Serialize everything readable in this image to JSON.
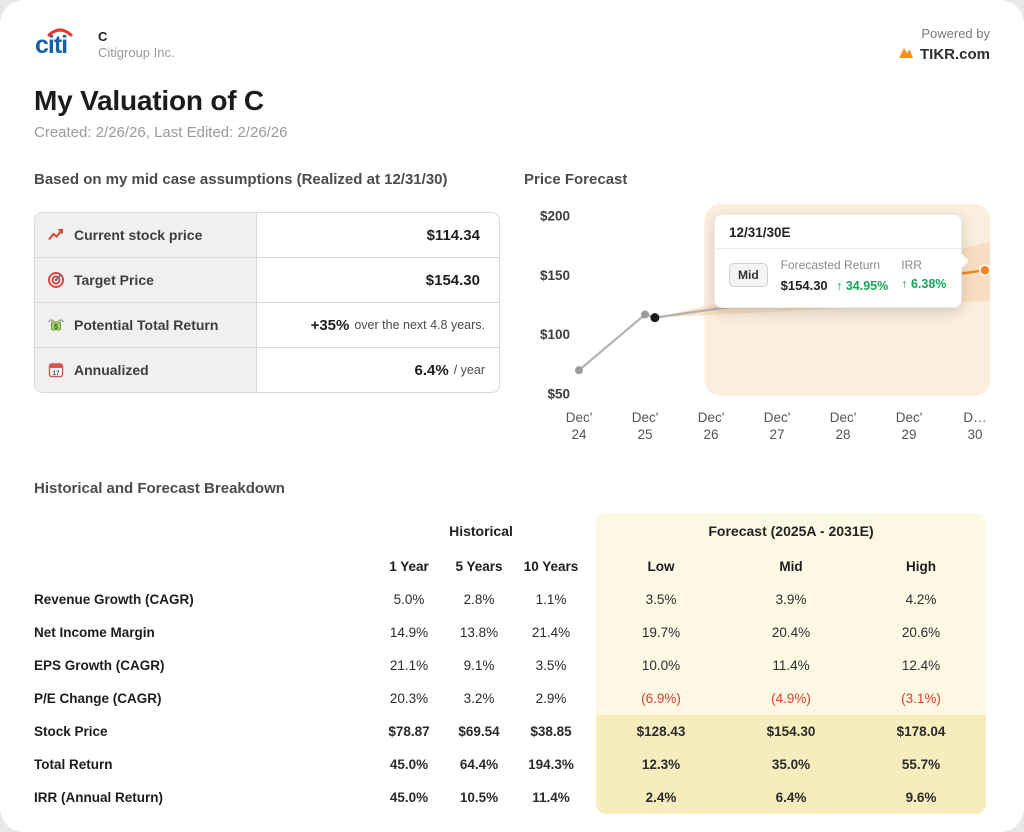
{
  "header": {
    "logo": "citi",
    "ticker": "C",
    "company": "Citigroup Inc.",
    "powered_by": "Powered by",
    "brand": "TIKR.com"
  },
  "page": {
    "title": "My Valuation of C",
    "subtitle": "Created: 2/26/26, Last Edited: 2/26/26"
  },
  "assumptions": {
    "heading": "Based on my mid case assumptions (Realized at 12/31/30)",
    "rows": [
      {
        "label": "Current stock price",
        "value": "$114.34",
        "suffix": ""
      },
      {
        "label": "Target Price",
        "value": "$154.30",
        "suffix": ""
      },
      {
        "label": "Potential Total Return",
        "value": "+35%",
        "suffix": "over the next 4.8 years."
      },
      {
        "label": "Annualized",
        "value": "6.4%",
        "suffix": "/ year"
      }
    ]
  },
  "forecast_section": {
    "heading": "Price Forecast"
  },
  "chart_data": {
    "type": "line",
    "title": "Price Forecast",
    "y_ticks": [
      {
        "value": 200,
        "label": "$200"
      },
      {
        "value": 150,
        "label": "$150"
      },
      {
        "value": 100,
        "label": "$100"
      },
      {
        "value": 50,
        "label": "$50"
      }
    ],
    "ylim": [
      45,
      210
    ],
    "x_labels": [
      {
        "top": "Dec'",
        "bottom": "24"
      },
      {
        "top": "Dec'",
        "bottom": "25"
      },
      {
        "top": "Dec'",
        "bottom": "26"
      },
      {
        "top": "Dec'",
        "bottom": "27"
      },
      {
        "top": "Dec'",
        "bottom": "28"
      },
      {
        "top": "Dec'",
        "bottom": "29"
      },
      {
        "top": "D…",
        "bottom": "30"
      }
    ],
    "historical": {
      "x": [
        0,
        1,
        1.15
      ],
      "values": [
        70,
        117,
        114.34
      ]
    },
    "current_point": {
      "x": 1.15,
      "value": 114.34
    },
    "forecast_fan": {
      "x_start": 1.15,
      "value_start": 114.34,
      "x_end": 6.15,
      "low": 128.43,
      "mid": 154.3,
      "high": 178.04
    },
    "colors": {
      "historical": "#b3b3b3",
      "forecast_mid": "#f0861f",
      "fan": "#f7d8b6",
      "band": "#fbeedf",
      "current_dot": "#1a1a1a",
      "gray_dot": "#9b9b9b",
      "green": "#18a35b"
    },
    "tooltip": {
      "title": "12/31/30E",
      "scenario": "Mid",
      "return_label": "Forecasted Return",
      "return_value": "$154.30",
      "return_change": "↑ 34.95%",
      "irr_label": "IRR",
      "irr_change": "↑ 6.38%"
    }
  },
  "breakdown": {
    "heading": "Historical and Forecast Breakdown",
    "historical_header": "Historical",
    "historical_columns": [
      "1 Year",
      "5 Years",
      "10 Years"
    ],
    "forecast_header": "Forecast (2025A - 2031E)",
    "forecast_columns": [
      "Low",
      "Mid",
      "High"
    ],
    "rows": [
      {
        "label": "Revenue Growth (CAGR)",
        "hist": [
          "5.0%",
          "2.8%",
          "1.1%"
        ],
        "forecast": [
          "3.5%",
          "3.9%",
          "4.2%"
        ]
      },
      {
        "label": "Net Income Margin",
        "hist": [
          "14.9%",
          "13.8%",
          "21.4%"
        ],
        "forecast": [
          "19.7%",
          "20.4%",
          "20.6%"
        ]
      },
      {
        "label": "EPS Growth (CAGR)",
        "hist": [
          "21.1%",
          "9.1%",
          "3.5%"
        ],
        "forecast": [
          "10.0%",
          "11.4%",
          "12.4%"
        ]
      },
      {
        "label": "P/E Change (CAGR)",
        "hist": [
          "20.3%",
          "3.2%",
          "2.9%"
        ],
        "forecast": [
          "(6.9%)",
          "(4.9%)",
          "(3.1%)"
        ]
      },
      {
        "label": "Stock Price",
        "hist": [
          "$78.87",
          "$69.54",
          "$38.85"
        ],
        "forecast": [
          "$128.43",
          "$154.30",
          "$178.04"
        ]
      },
      {
        "label": "Total Return",
        "hist": [
          "45.0%",
          "64.4%",
          "194.3%"
        ],
        "forecast": [
          "12.3%",
          "35.0%",
          "55.7%"
        ]
      },
      {
        "label": "IRR (Annual Return)",
        "hist": [
          "45.0%",
          "10.5%",
          "11.4%"
        ],
        "forecast": [
          "2.4%",
          "6.4%",
          "9.6%"
        ]
      }
    ]
  }
}
